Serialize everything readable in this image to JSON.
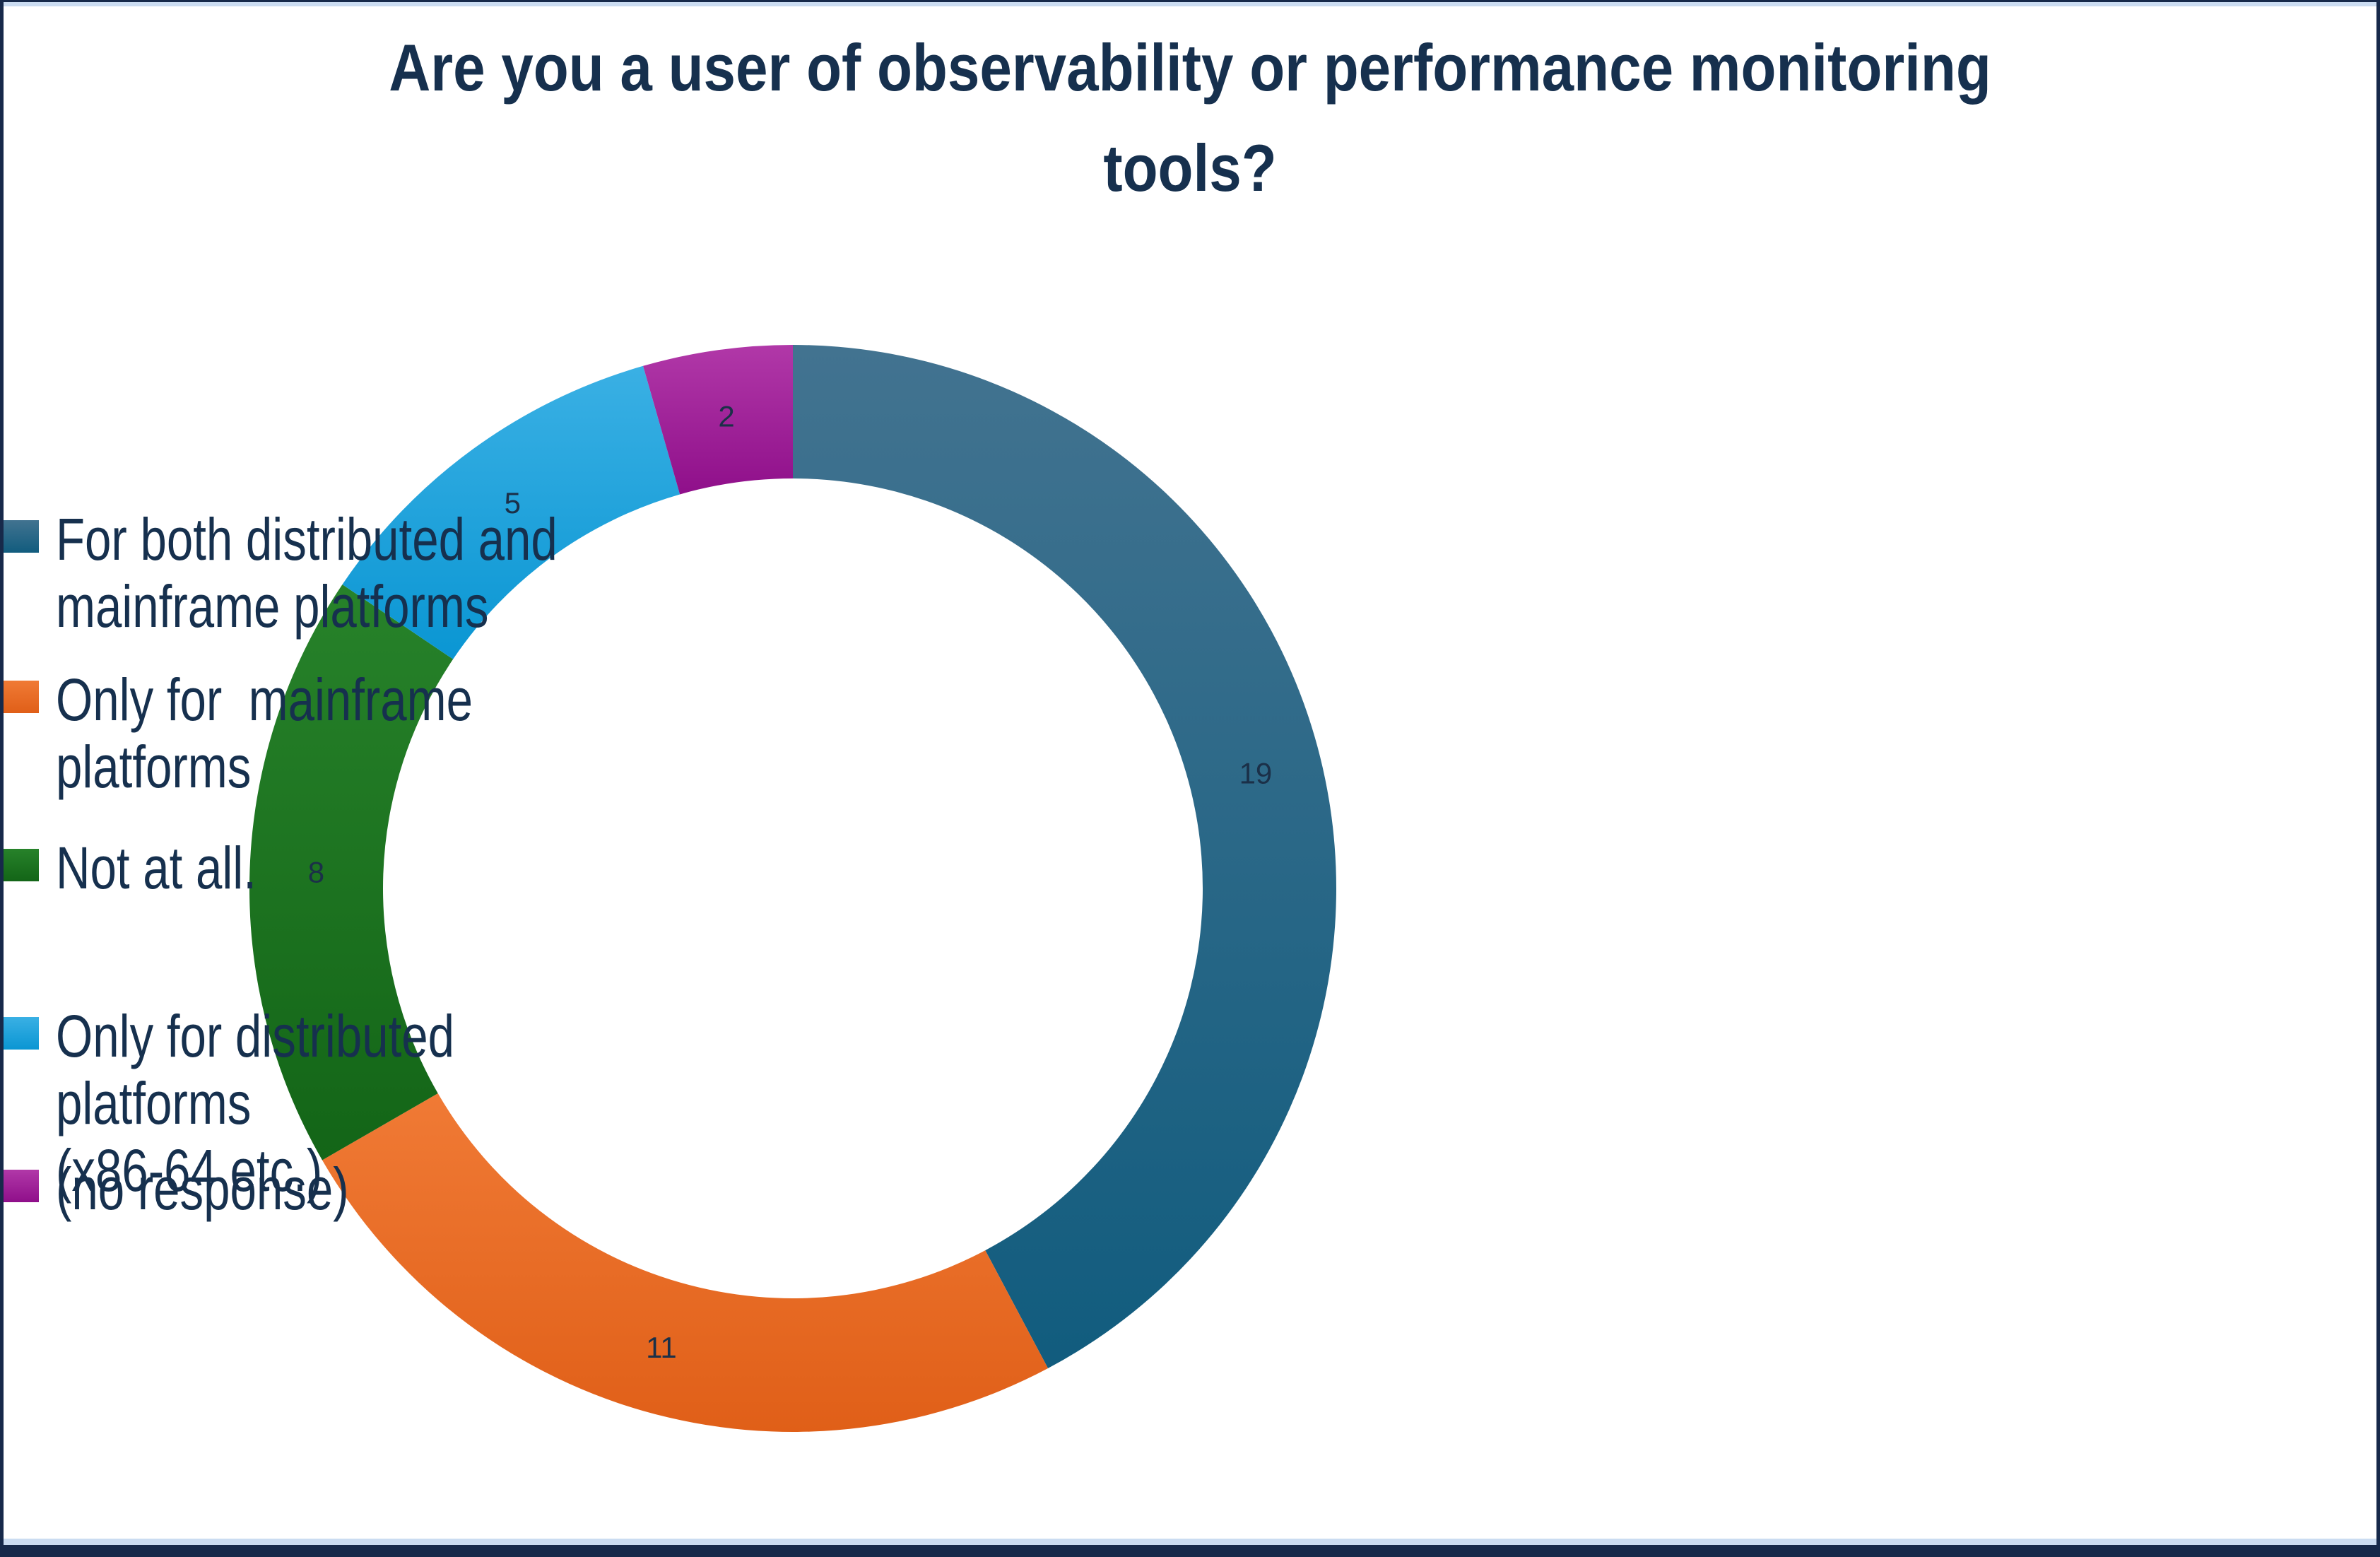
{
  "frame": {
    "border_color": "#17294A",
    "trim_color": "#CBDCF1",
    "background": "#FFFFFF"
  },
  "title": {
    "text": "Are you a user of observability or performance monitoring\ntools?",
    "color": "#16304E"
  },
  "chart_data": {
    "type": "pie",
    "donut": true,
    "hole_ratio": 0.754,
    "title": "Are you a user of observability or performance monitoring tools?",
    "categories": [
      "For both distributed and mainframe platforms",
      "Only for  mainframe platforms",
      "Not at all.",
      "Only for distributed platforms (x86-64 etc.)",
      "(no response)"
    ],
    "values": [
      19,
      11,
      8,
      5,
      2
    ],
    "total": 45,
    "colors": [
      "#1E6384",
      "#EA6A25",
      "#1B7521",
      "#17A3DC",
      "#A21C9A"
    ],
    "colors_light": [
      "#427390",
      "#F07A35",
      "#27822A",
      "#3AB0E4",
      "#B138A8"
    ],
    "colors_dark": [
      "#115C7E",
      "#E05F18",
      "#136517",
      "#0A96D3",
      "#8F0F8A"
    ],
    "value_label_color": "#1B3048",
    "start_angle_deg": -90,
    "direction": "clockwise",
    "legend_position": "right",
    "grid": false
  },
  "legend": {
    "items": [
      {
        "label": "For both distributed and\nmainframe platforms",
        "color": "#1E6384"
      },
      {
        "label": "Only for  mainframe platforms",
        "color": "#EA6A25"
      },
      {
        "label": "Not at all.",
        "color": "#1B7521"
      },
      {
        "label": "Only for distributed platforms\n(x86-64 etc.)",
        "color": "#17A3DC"
      },
      {
        "label": "(no response)",
        "color": "#A21C9A"
      }
    ]
  }
}
